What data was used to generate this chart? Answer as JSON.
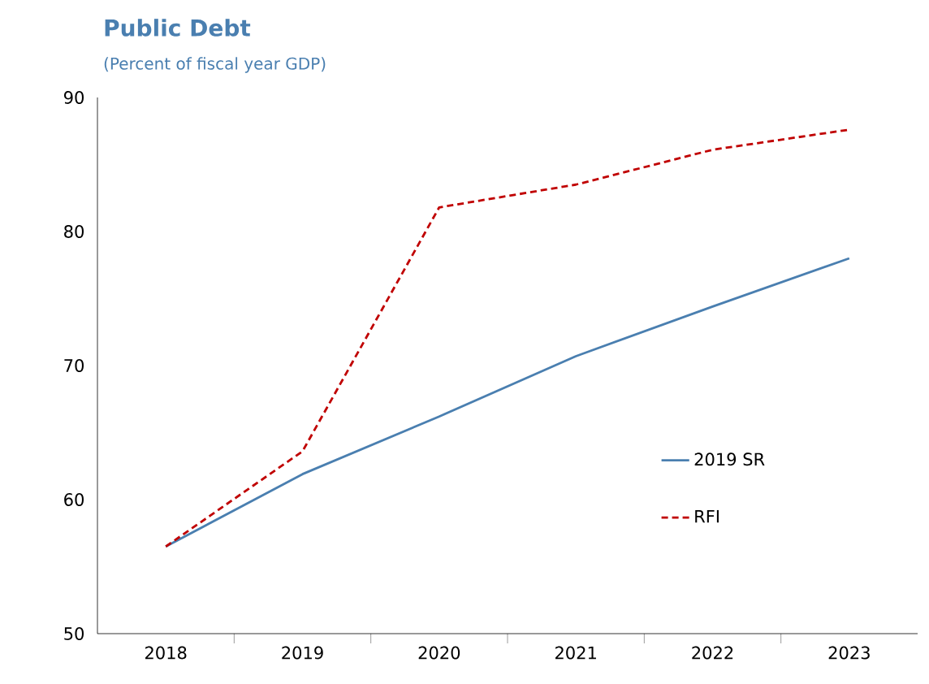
{
  "chart_data": {
    "type": "line",
    "title": "Public Debt",
    "subtitle": "(Percent of fiscal year GDP)",
    "categories": [
      "2018",
      "2019",
      "2020",
      "2021",
      "2022",
      "2023"
    ],
    "series": [
      {
        "name": "2019 SR",
        "color": "#4a7fb0",
        "line_style": "solid",
        "values": [
          56.5,
          61.9,
          66.2,
          70.7,
          74.4,
          78.0
        ]
      },
      {
        "name": "RFI",
        "color": "#c00000",
        "line_style": "dashed",
        "values": [
          56.5,
          63.6,
          81.8,
          83.5,
          86.1,
          87.6
        ]
      }
    ],
    "ylim": [
      50,
      90
    ],
    "yticks": [
      50,
      60,
      70,
      80,
      90
    ],
    "grid": false,
    "legend": "right",
    "marker": "none"
  }
}
